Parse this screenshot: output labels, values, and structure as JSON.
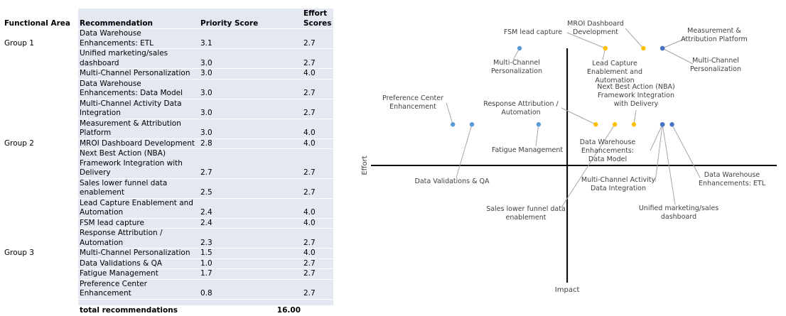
{
  "table": {
    "headers": [
      "Functional Area",
      "Recommendation",
      "Priority Score",
      "Effort Scores"
    ],
    "rows": [
      [
        "Group 1",
        "Data Warehouse Enhancements: ETL",
        "3.1",
        "2.7"
      ],
      [
        null,
        "Unified marketing/sales dashboard",
        "3.0",
        "2.7"
      ],
      [
        null,
        "Multi-Channel Personalization",
        "3.0",
        "4.0"
      ],
      [
        null,
        "Data Warehouse Enhancements: Data Model",
        "3.0",
        "2.7"
      ],
      [
        null,
        "Multi-Channel Activity Data Integration",
        "3.0",
        "2.7"
      ],
      [
        null,
        "Measurement & Attribution Platform",
        "3.0",
        "4.0"
      ],
      [
        "Group 2",
        "MROI Dashboard Development",
        "2.8",
        "4.0"
      ],
      [
        null,
        "Next Best Action (NBA) Framework Integration with Delivery",
        "2.7",
        "2.7"
      ],
      [
        null,
        "Sales lower funnel data enablement",
        "2.5",
        "2.7"
      ],
      [
        null,
        "Lead Capture Enablement and Automation",
        "2.4",
        "4.0"
      ],
      [
        null,
        "FSM lead capture",
        "2.4",
        "4.0"
      ],
      [
        null,
        "Response Attribution / Automation",
        "2.3",
        "2.7"
      ],
      [
        "Group 3",
        "Multi-Channel Personalization",
        "1.5",
        "4.0"
      ],
      [
        null,
        "Data Validations & QA",
        "1.0",
        "2.7"
      ],
      [
        null,
        "Fatigue Management",
        "1.7",
        "2.7"
      ],
      [
        null,
        "Preference Center Enhancement",
        "0.8",
        "2.7"
      ]
    ],
    "footer": {
      "label": "total recommendations",
      "value": "16.00"
    }
  },
  "chart_data": {
    "type": "scatter",
    "x_label": "Impact",
    "y_label": "Effort",
    "xlim": [
      0,
      4.2
    ],
    "ylim": [
      0,
      4.0
    ],
    "axis_cross": [
      2,
      2
    ],
    "series": [
      {
        "color": "#4472c4",
        "x": [
          3.1,
          3.0,
          3.0,
          3.0,
          3.0,
          3.0
        ],
        "values": [
          2.7,
          2.7,
          4.0,
          2.7,
          2.7,
          4.0
        ],
        "labels": [
          "Data Warehouse Enhancements: ETL",
          "Unified marketing/sales dashboard",
          "Multi-Channel Personalization",
          "Data Warehouse Enhancements: Data Model",
          "Multi-Channel Activity Data Integration",
          "Measurement & Attribution Platform"
        ]
      },
      {
        "color": "#ffc000",
        "x": [
          2.8,
          2.7,
          2.5,
          2.4,
          2.4,
          2.3
        ],
        "values": [
          4.0,
          2.7,
          2.7,
          4.0,
          4.0,
          2.7
        ],
        "labels": [
          "MROI Dashboard Development",
          "Next Best Action (NBA) Framework Integration with Delivery",
          "Sales lower funnel data enablement",
          "Lead Capture Enablement and Automation",
          "FSM lead capture",
          "Response Attribution / Automation"
        ]
      },
      {
        "color": "#5b9bd5",
        "x": [
          1.5,
          1.0,
          1.7,
          0.8
        ],
        "values": [
          4.0,
          2.7,
          2.7,
          2.7
        ],
        "labels": [
          "Multi-Channel Personalization",
          "Data Validations & QA",
          "Fatigue Management",
          "Preference Center Enhancement"
        ]
      }
    ]
  }
}
